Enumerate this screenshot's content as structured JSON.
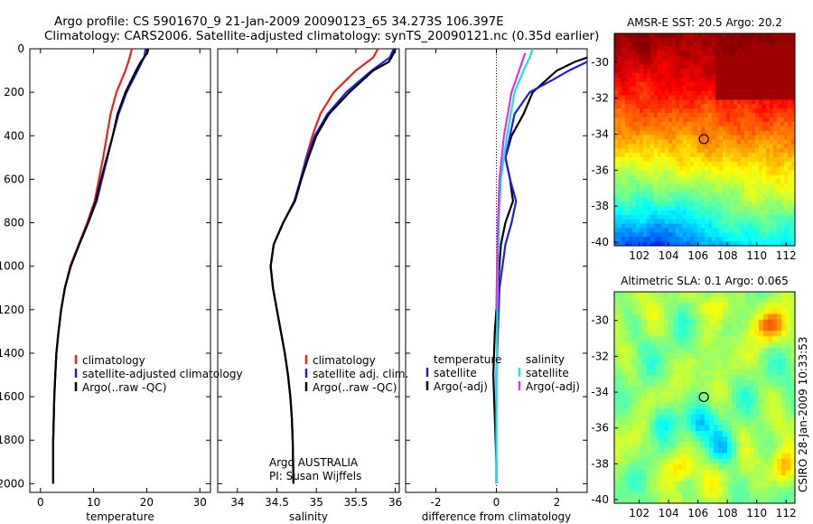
{
  "header": {
    "line1": "Argo profile: CS 5901670_9 21-Jan-2009 20090123_65 34.273S 106.397E",
    "line2": "Climatology: CARS2006. Satellite-adjusted climatology: synTS_20090121.nc (0.35d earlier)"
  },
  "side_label": "CSIRO 28-Jan-2009 10:33:53",
  "colors": {
    "climatology": "#e8231e",
    "satellite": "#1a1ee8",
    "argo": "#000000",
    "sat_salinity": "#19e0e8",
    "argo_salinity_adj": "#e033e0"
  },
  "chart_data": [
    {
      "type": "line",
      "panel": "temperature",
      "xlabel": "temperature",
      "xlim": [
        -2,
        32
      ],
      "ylim": [
        0,
        2040
      ],
      "y_reversed": true,
      "xticks": [
        0,
        10,
        20,
        30
      ],
      "yticks": [
        0,
        200,
        400,
        600,
        800,
        1000,
        1200,
        1400,
        1600,
        1800,
        2000
      ],
      "legend": [
        "climatology",
        "satellite-adjusted climatology",
        "Argo(..raw -QC)"
      ],
      "series": [
        {
          "key": "climatology",
          "x": [
            17.2,
            16.8,
            16.0,
            14.3,
            13.2,
            12.5,
            11.8,
            11.0,
            10.2,
            8.8,
            7.2,
            5.6,
            4.6,
            3.9,
            3.4,
            3.0,
            2.8,
            2.6,
            2.5,
            2.4,
            2.4
          ],
          "y": [
            0,
            40,
            100,
            200,
            300,
            400,
            500,
            600,
            700,
            800,
            900,
            1000,
            1100,
            1200,
            1300,
            1400,
            1500,
            1600,
            1700,
            1800,
            2000
          ]
        },
        {
          "key": "satellite",
          "x": [
            19.8,
            19.5,
            18.3,
            16.2,
            14.7,
            13.6,
            12.6,
            11.6,
            10.6,
            9.0,
            7.3,
            5.7,
            4.6,
            3.9,
            3.4,
            3.0,
            2.8,
            2.6,
            2.5,
            2.4,
            2.4
          ],
          "y": [
            0,
            40,
            100,
            200,
            300,
            400,
            500,
            600,
            700,
            800,
            900,
            1000,
            1100,
            1200,
            1300,
            1400,
            1500,
            1600,
            1700,
            1800,
            2000
          ]
        },
        {
          "key": "argo",
          "x": [
            20.3,
            20.1,
            18.9,
            18.0,
            16.0,
            14.5,
            13.6,
            12.5,
            11.4,
            10.4,
            9.0,
            7.3,
            5.7,
            4.6,
            3.9,
            3.4,
            3.0,
            2.8,
            2.6,
            2.5,
            2.4,
            2.4
          ],
          "y": [
            0,
            20,
            60,
            100,
            200,
            300,
            400,
            500,
            600,
            700,
            800,
            900,
            1000,
            1100,
            1200,
            1300,
            1400,
            1500,
            1600,
            1700,
            1800,
            2000
          ]
        }
      ]
    },
    {
      "type": "line",
      "panel": "salinity",
      "xlabel": "salinity",
      "xlim": [
        33.75,
        36.05
      ],
      "ylim": [
        0,
        2040
      ],
      "y_reversed": true,
      "xticks": [
        34,
        34.5,
        35,
        35.5,
        36
      ],
      "legend": [
        "climatology",
        "satellite adj. clim.",
        "Argo(..raw -QC)"
      ],
      "annotation": [
        "Argo AUSTRALIA",
        "PI: Susan Wijffels"
      ],
      "series": [
        {
          "key": "climatology",
          "x": [
            35.78,
            35.72,
            35.5,
            35.22,
            35.05,
            34.95,
            34.87,
            34.8,
            34.72,
            34.58,
            34.46,
            34.42,
            34.45,
            34.5,
            34.55,
            34.6,
            34.64,
            34.67,
            34.69,
            34.7,
            34.71
          ],
          "y": [
            0,
            40,
            100,
            200,
            300,
            400,
            500,
            600,
            700,
            800,
            900,
            1000,
            1100,
            1200,
            1300,
            1400,
            1500,
            1600,
            1700,
            1800,
            2000
          ]
        },
        {
          "key": "satellite",
          "x": [
            35.98,
            35.93,
            35.7,
            35.38,
            35.14,
            34.98,
            34.88,
            34.8,
            34.72,
            34.58,
            34.46,
            34.42,
            34.45,
            34.5,
            34.55,
            34.6,
            34.64,
            34.67,
            34.69,
            34.7,
            34.71
          ],
          "y": [
            0,
            40,
            100,
            200,
            300,
            400,
            500,
            600,
            700,
            800,
            900,
            1000,
            1100,
            1200,
            1300,
            1400,
            1500,
            1600,
            1700,
            1800,
            2000
          ]
        },
        {
          "key": "argo",
          "x": [
            36.0,
            35.98,
            35.92,
            35.72,
            35.42,
            35.16,
            35.0,
            34.9,
            34.81,
            34.73,
            34.58,
            34.46,
            34.42,
            34.45,
            34.5,
            34.55,
            34.6,
            34.64,
            34.67,
            34.69,
            34.7,
            34.71
          ],
          "y": [
            0,
            20,
            60,
            100,
            200,
            300,
            400,
            500,
            600,
            700,
            800,
            900,
            1000,
            1100,
            1200,
            1300,
            1400,
            1500,
            1600,
            1700,
            1800,
            2000
          ]
        }
      ]
    },
    {
      "type": "line",
      "panel": "difference",
      "xlabel": "difference from climatology",
      "xlim": [
        -3.0,
        3.0
      ],
      "ylim": [
        0,
        2040
      ],
      "y_reversed": true,
      "xticks": [
        -2,
        0,
        2
      ],
      "legend_left_title": "temperature",
      "legend_left": [
        "satellite",
        "Argo(-adj)"
      ],
      "legend_right_title": "salinity",
      "legend_right": [
        "satellite",
        "Argo(-adj)"
      ],
      "series": [
        {
          "key": "argo",
          "x": [
            3.0,
            2.6,
            2.0,
            1.2,
            0.9,
            0.5,
            0.3,
            0.45,
            0.55,
            0.3,
            0.15,
            0.05,
            -0.05,
            -0.1,
            -0.05,
            0.0,
            0.0
          ],
          "y": [
            40,
            60,
            100,
            200,
            300,
            400,
            500,
            600,
            700,
            800,
            900,
            1100,
            1300,
            1500,
            1700,
            1900,
            2000
          ]
        },
        {
          "key": "satellite",
          "x": [
            3.0,
            2.4,
            1.9,
            1.1,
            0.6,
            0.3,
            0.45,
            0.65,
            0.5,
            0.3,
            0.1,
            0.0,
            0.0
          ],
          "y": [
            60,
            100,
            140,
            200,
            300,
            500,
            600,
            700,
            800,
            900,
            1100,
            1500,
            2000
          ]
        },
        {
          "key": "sat_salinity",
          "x": [
            1.2,
            1.1,
            0.9,
            0.6,
            0.35,
            0.15,
            0.08,
            0.05,
            0.02,
            0.0,
            0.0
          ],
          "y": [
            0,
            40,
            100,
            200,
            400,
            600,
            800,
            1000,
            1300,
            1700,
            2000
          ]
        },
        {
          "key": "argo_salinity_adj",
          "x": [
            0.95,
            0.85,
            0.7,
            0.5,
            0.25,
            0.1,
            0.05,
            0.02,
            0.0
          ],
          "y": [
            20,
            60,
            120,
            200,
            400,
            600,
            800,
            1000,
            1200
          ]
        }
      ]
    },
    {
      "type": "heatmap",
      "panel": "sst_map",
      "title": "AMSR-E SST: 20.5 Argo: 20.2",
      "xlim": [
        100.3,
        112.6
      ],
      "ylim": [
        -40.2,
        -28.4
      ],
      "xticks": [
        102,
        104,
        106,
        108,
        110,
        112
      ],
      "yticks": [
        -30,
        -32,
        -34,
        -36,
        -38,
        -40
      ],
      "marker": {
        "lon": 106.397,
        "lat": -34.273
      }
    },
    {
      "type": "heatmap",
      "panel": "sla_map",
      "title": "Altimetric SLA: 0.1 Argo: 0.065",
      "xlim": [
        100.3,
        112.6
      ],
      "ylim": [
        -40.2,
        -28.4
      ],
      "xticks": [
        102,
        104,
        106,
        108,
        110,
        112
      ],
      "yticks": [
        -30,
        -32,
        -34,
        -36,
        -38,
        -40
      ],
      "marker": {
        "lon": 106.397,
        "lat": -34.273
      }
    }
  ]
}
